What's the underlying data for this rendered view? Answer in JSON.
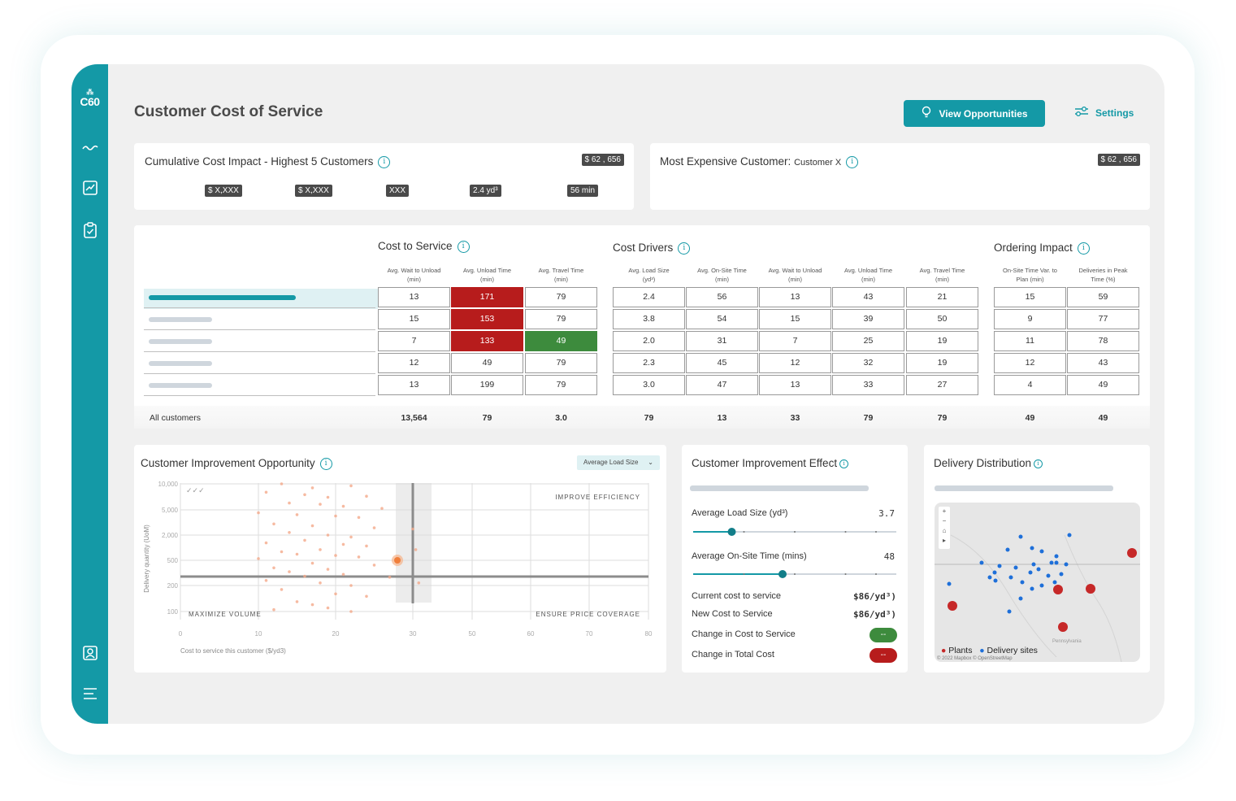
{
  "brand": {
    "logo": "C60",
    "accent": "#1499a6"
  },
  "sidebar": {
    "icons": [
      "trend-wave-icon",
      "chart-icon",
      "clipboard-check-icon",
      "user-profile-icon",
      "menu-icon"
    ]
  },
  "page_title": "Customer Cost of Service",
  "header": {
    "view_opportunities": "View Opportunities",
    "settings": "Settings"
  },
  "cumulative": {
    "title": "Cumulative Cost Impact - Highest 5 Customers",
    "total": "$ 62 , 656",
    "chips": [
      "$ X,XXX",
      "$ X,XXX",
      "XXX",
      "2.4 yd³",
      "56 min"
    ]
  },
  "most_expensive": {
    "title": "Most Expensive Customer:",
    "customer": "Customer X",
    "total": "$ 62 , 656"
  },
  "table": {
    "sections": {
      "cost_to_service": "Cost to Service",
      "cost_drivers": "Cost Drivers",
      "ordering_impact": "Ordering Impact"
    },
    "headers": [
      [
        "Avg. Wait to Unload",
        "(min)"
      ],
      [
        "Avg. Unload Time",
        "(min)"
      ],
      [
        "Avg. Travel Time",
        "(min)"
      ],
      [
        "Avg. Load Size",
        "(yd³)"
      ],
      [
        "Avg. On-Site Time",
        "(min)"
      ],
      [
        "Avg. Wait to Unload",
        "(min)"
      ],
      [
        "Avg. Unload Time",
        "(min)"
      ],
      [
        "Avg. Travel Time",
        "(min)"
      ],
      [
        "On-Site Time Var. to",
        "Plan (min)"
      ],
      [
        "Deliveries in Peak",
        "Time (%)"
      ]
    ],
    "rows": [
      [
        "13",
        "171",
        "79",
        "2.4",
        "56",
        "13",
        "43",
        "21",
        "15",
        "59"
      ],
      [
        "15",
        "153",
        "79",
        "3.8",
        "54",
        "15",
        "39",
        "50",
        "9",
        "77"
      ],
      [
        "7",
        "133",
        "49",
        "2.0",
        "31",
        "7",
        "25",
        "19",
        "11",
        "78"
      ],
      [
        "12",
        "49",
        "79",
        "2.3",
        "45",
        "12",
        "32",
        "19",
        "12",
        "43"
      ],
      [
        "13",
        "199",
        "79",
        "3.0",
        "47",
        "13",
        "33",
        "27",
        "4",
        "49"
      ]
    ],
    "highlights": {
      "red": [
        [
          0,
          1
        ],
        [
          1,
          1
        ],
        [
          2,
          1
        ]
      ],
      "green": [
        [
          2,
          2
        ]
      ]
    },
    "totals_label": "All customers",
    "totals": [
      "13,564",
      "79",
      "3.0",
      "79",
      "13",
      "33",
      "79",
      "79",
      "49",
      "49"
    ]
  },
  "opportunity": {
    "title": "Customer Improvement Opportunity",
    "dropdown": "Average Load Size",
    "quadrants": {
      "top_right": "IMPROVE EFFICIENCY",
      "bottom_left": "MAXIMIZE VOLUME",
      "bottom_right": "ENSURE PRICE COVERAGE"
    },
    "corner_mark": "✓✓✓"
  },
  "chart_data": {
    "type": "scatter",
    "title": "Customer Improvement Opportunity",
    "xlabel": "Cost to service this customer ($/yd3)",
    "ylabel": "Delivery  quantity (UoM)",
    "x_ticks": [
      "0",
      "10",
      "20",
      "30",
      "50",
      "60",
      "70",
      "80"
    ],
    "y_ticks": [
      "10,000",
      "5,000",
      "2,000",
      "500",
      "200",
      "100"
    ],
    "highlighted_point": {
      "x": 28,
      "y": 500
    },
    "points": [
      [
        13,
        10000
      ],
      [
        17,
        9000
      ],
      [
        22,
        9500
      ],
      [
        11,
        8000
      ],
      [
        16,
        7500
      ],
      [
        19,
        7000
      ],
      [
        24,
        7200
      ],
      [
        14,
        6000
      ],
      [
        18,
        5800
      ],
      [
        21,
        5500
      ],
      [
        26,
        5200
      ],
      [
        10,
        4500
      ],
      [
        15,
        4200
      ],
      [
        20,
        4000
      ],
      [
        23,
        3800
      ],
      [
        12,
        3000
      ],
      [
        17,
        2800
      ],
      [
        25,
        2600
      ],
      [
        14,
        2200
      ],
      [
        19,
        2000
      ],
      [
        22,
        1800
      ],
      [
        16,
        1500
      ],
      [
        11,
        1300
      ],
      [
        21,
        1200
      ],
      [
        24,
        1100
      ],
      [
        18,
        900
      ],
      [
        13,
        800
      ],
      [
        15,
        700
      ],
      [
        20,
        650
      ],
      [
        23,
        600
      ],
      [
        10,
        550
      ],
      [
        17,
        450
      ],
      [
        25,
        420
      ],
      [
        12,
        380
      ],
      [
        19,
        360
      ],
      [
        14,
        330
      ],
      [
        21,
        300
      ],
      [
        16,
        280
      ],
      [
        27,
        270
      ],
      [
        11,
        240
      ],
      [
        18,
        220
      ],
      [
        22,
        200
      ],
      [
        13,
        180
      ],
      [
        20,
        160
      ],
      [
        24,
        150
      ],
      [
        15,
        130
      ],
      [
        17,
        120
      ],
      [
        19,
        110
      ],
      [
        12,
        105
      ],
      [
        22,
        100
      ],
      [
        30,
        2500
      ],
      [
        31,
        900
      ],
      [
        32,
        220
      ]
    ]
  },
  "effect": {
    "title": "Customer Improvement Effect",
    "load_size_label": "Average Load Size (yd³)",
    "load_size_value": "3.7",
    "load_size_level": 0.19,
    "onsite_label": "Average On-Site Time (mins)",
    "onsite_value": "48",
    "onsite_level": 0.44,
    "current_label": "Current cost to service",
    "current_value": "$86/yd³)",
    "new_label": "New Cost to Service",
    "new_value": "$86/yd³)",
    "change_service_label": "Change in Cost to Service",
    "change_service_value": "--",
    "change_service_color": "#3d8b3d",
    "change_total_label": "Change in Total Cost",
    "change_total_value": "--",
    "change_total_color": "#b71c1c"
  },
  "distribution": {
    "title": "Delivery Distribution",
    "legend_plants": "Plants",
    "legend_sites": "Delivery sites",
    "attribution": "© 2022 Mapbox  © OpenStreetMap",
    "region_label": "Pennsylvania",
    "plant_color": "#c62828",
    "site_color": "#1e6fd9"
  }
}
